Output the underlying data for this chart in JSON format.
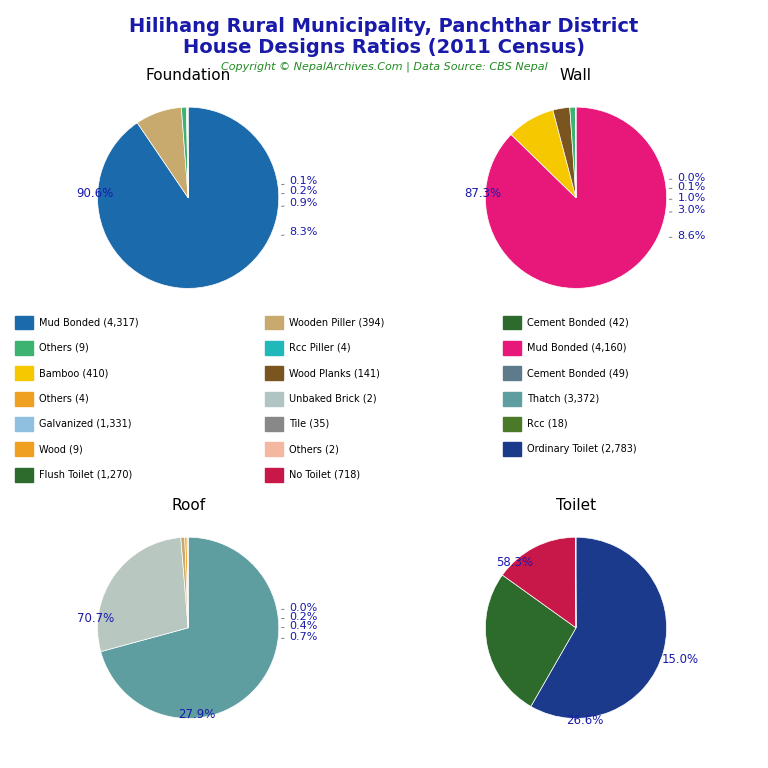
{
  "title_line1": "Hilihang Rural Municipality, Panchthar District",
  "title_line2": "House Designs Ratios (2011 Census)",
  "copyright": "Copyright © NepalArchives.Com | Data Source: CBS Nepal",
  "foundation": {
    "title": "Foundation",
    "values": [
      90.6,
      8.3,
      0.9,
      0.2,
      0.1
    ],
    "colors": [
      "#1B6AAB",
      "#C8A96E",
      "#3CB371",
      "#90C0E0",
      "#F0A020"
    ],
    "startangle": 90,
    "counterclock": false
  },
  "wall": {
    "title": "Wall",
    "values": [
      87.3,
      8.6,
      3.0,
      1.0,
      0.1,
      0.0
    ],
    "colors": [
      "#E8187A",
      "#F5C800",
      "#7A5520",
      "#3CB371",
      "#1B6AAB",
      "#999999"
    ],
    "startangle": 90,
    "counterclock": false
  },
  "roof": {
    "title": "Roof",
    "values": [
      70.7,
      27.9,
      0.7,
      0.4,
      0.2,
      0.0
    ],
    "colors": [
      "#5F9EA0",
      "#B8C8C0",
      "#C8A96E",
      "#F0A020",
      "#90C0E0",
      "#888888"
    ],
    "startangle": 90,
    "counterclock": false
  },
  "toilet": {
    "title": "Toilet",
    "values": [
      58.3,
      26.6,
      15.0,
      0.1
    ],
    "colors": [
      "#1B3A8C",
      "#2D6B2D",
      "#C8184A",
      "#20A8A8"
    ],
    "startangle": 90,
    "counterclock": false
  },
  "legend_col1": [
    {
      "label": "Mud Bonded (4,317)",
      "color": "#1B6AAB"
    },
    {
      "label": "Others (9)",
      "color": "#3CB371"
    },
    {
      "label": "Bamboo (410)",
      "color": "#F5C800"
    },
    {
      "label": "Others (4)",
      "color": "#F0A020"
    },
    {
      "label": "Galvanized (1,331)",
      "color": "#90C0E0"
    },
    {
      "label": "Wood (9)",
      "color": "#F0A020"
    },
    {
      "label": "Flush Toilet (1,270)",
      "color": "#2D6B2D"
    }
  ],
  "legend_col2": [
    {
      "label": "Wooden Piller (394)",
      "color": "#C8A96E"
    },
    {
      "label": "Rcc Piller (4)",
      "color": "#20B8B8"
    },
    {
      "label": "Wood Planks (141)",
      "color": "#7A5520"
    },
    {
      "label": "Unbaked Brick (2)",
      "color": "#B0C4C4"
    },
    {
      "label": "Tile (35)",
      "color": "#888888"
    },
    {
      "label": "Others (2)",
      "color": "#F4B8A0"
    },
    {
      "label": "No Toilet (718)",
      "color": "#C8184A"
    }
  ],
  "legend_col3": [
    {
      "label": "Cement Bonded (42)",
      "color": "#2D6B2D"
    },
    {
      "label": "Mud Bonded (4,160)",
      "color": "#E8187A"
    },
    {
      "label": "Cement Bonded (49)",
      "color": "#5D7B8A"
    },
    {
      "label": "Thatch (3,372)",
      "color": "#5F9EA0"
    },
    {
      "label": "Rcc (18)",
      "color": "#4A7A28"
    },
    {
      "label": "Ordinary Toilet (2,783)",
      "color": "#1B3A8C"
    }
  ]
}
